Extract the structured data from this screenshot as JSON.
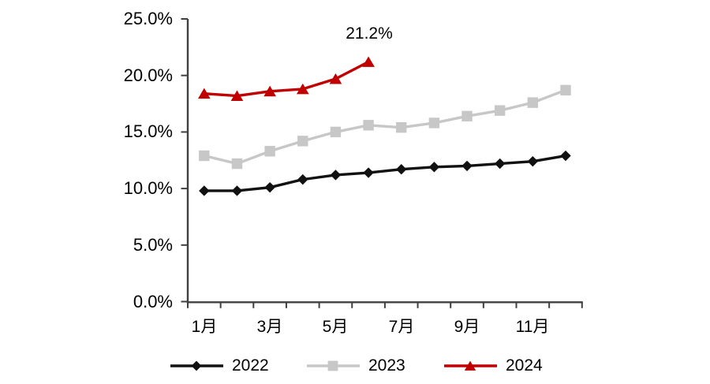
{
  "chart_data": {
    "type": "line",
    "title": "",
    "x_months": [
      1,
      2,
      3,
      4,
      5,
      6,
      7,
      8,
      9,
      10,
      11,
      12
    ],
    "x_tick_labels": [
      "1月",
      "3月",
      "5月",
      "7月",
      "9月",
      "11月"
    ],
    "x_tick_label_months": [
      1,
      3,
      5,
      7,
      9,
      11
    ],
    "y_tick_labels": [
      "25.0%",
      "20.0%",
      "15.0%",
      "10.0%",
      "5.0%",
      "0.0%"
    ],
    "y_tick_values": [
      25,
      20,
      15,
      10,
      5,
      0
    ],
    "ylim": [
      0,
      25
    ],
    "y_unit": "percent",
    "grid": "off",
    "legend_position": "bottom",
    "axis_color": "#404040",
    "series": [
      {
        "name": "2022",
        "color": "#111111",
        "marker": "diamond",
        "values": [
          9.8,
          9.8,
          10.1,
          10.8,
          11.2,
          11.4,
          11.7,
          11.9,
          12.0,
          12.2,
          12.4,
          12.9
        ]
      },
      {
        "name": "2023",
        "color": "#c7c7c7",
        "marker": "square",
        "values": [
          12.9,
          12.2,
          13.3,
          14.2,
          15.0,
          15.6,
          15.4,
          15.8,
          16.4,
          16.9,
          17.6,
          18.7
        ]
      },
      {
        "name": "2024",
        "color": "#c00000",
        "marker": "triangle",
        "values": [
          18.4,
          18.2,
          18.6,
          18.8,
          19.7,
          21.2
        ]
      }
    ],
    "annotation": {
      "text": "21.2%",
      "series": "2024",
      "month": 6,
      "value": 21.2
    }
  }
}
